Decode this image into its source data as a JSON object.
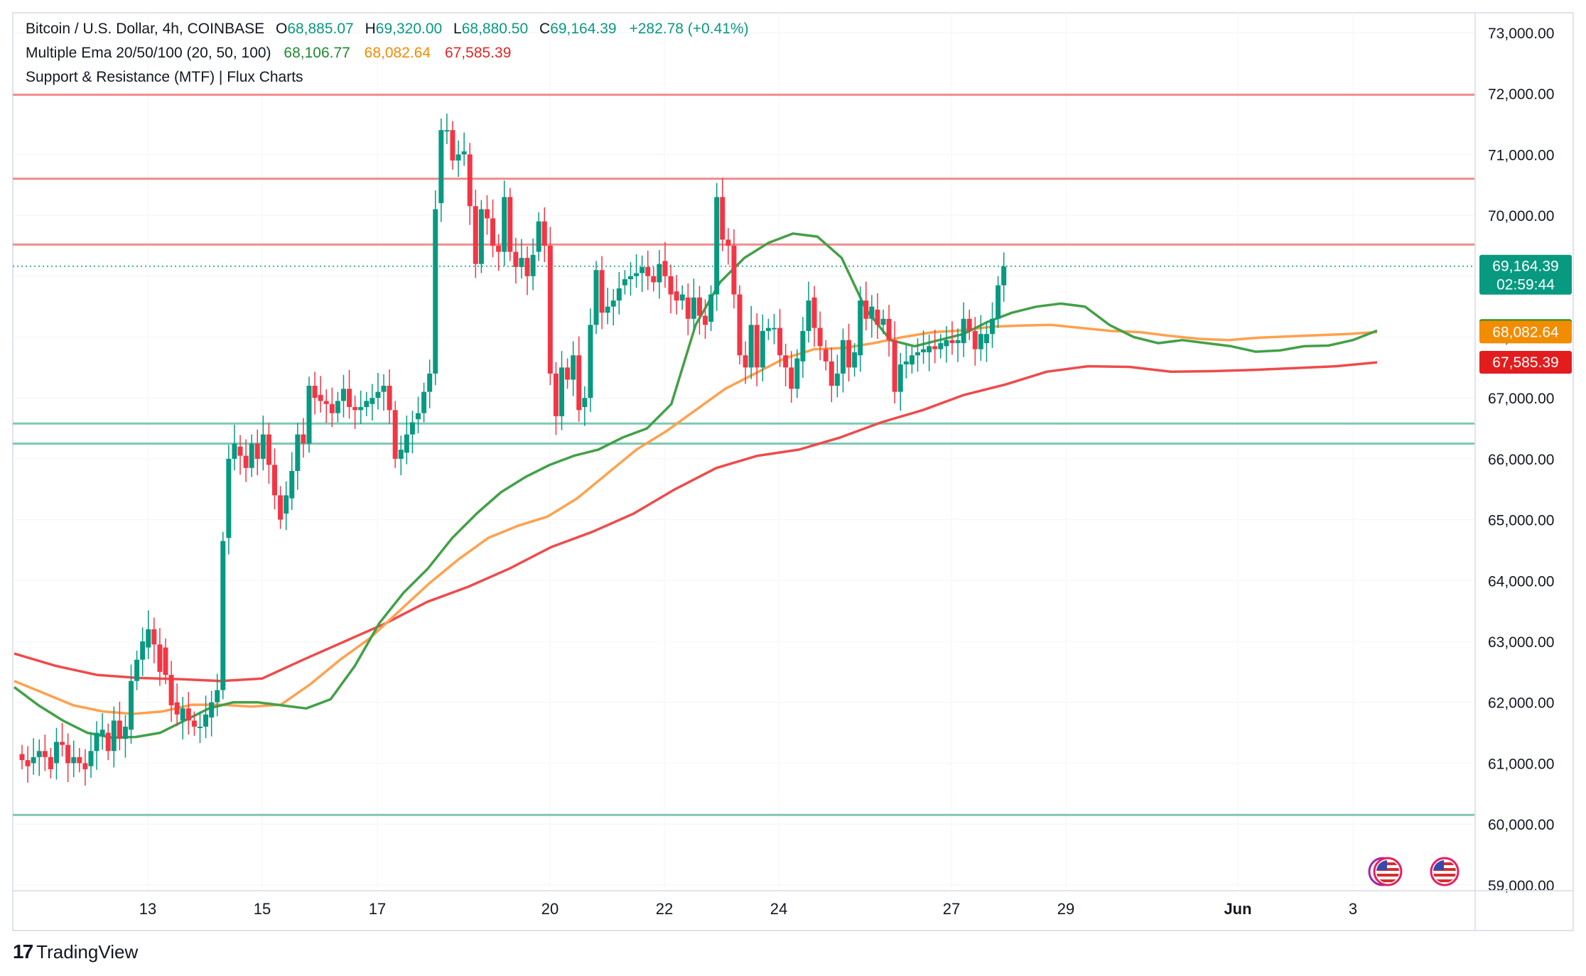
{
  "legend": {
    "symbol": "Bitcoin / U.S. Dollar, 4h, COINBASE",
    "o_label": "O",
    "o_value": "68,885.07",
    "h_label": "H",
    "h_value": "69,320.00",
    "l_label": "L",
    "l_value": "68,880.50",
    "c_label": "C",
    "c_value": "69,164.39",
    "change": "+282.78 (+0.41%)",
    "ema_title": "Multiple Ema 20/50/100 (20, 50, 100)",
    "ema20_value": "68,106.77",
    "ema50_value": "68,082.64",
    "ema100_value": "67,585.39",
    "sr_title": "Support & Resistance (MTF) | Flux Charts"
  },
  "brand": {
    "logo": "17",
    "name": "TradingView"
  },
  "colors": {
    "up": "#089981",
    "down": "#f23645",
    "ema20": "#43a047",
    "ema50": "#ffa14d",
    "ema100": "#ee4b4b",
    "resistance": "#f28b8b",
    "support": "#7ec8b4",
    "axis_text": "#131722"
  },
  "chart_data": {
    "type": "candlestick",
    "y_axis": {
      "min": 59000,
      "max": 73000,
      "ticks": [
        "59,000.00",
        "60,000.00",
        "61,000.00",
        "62,000.00",
        "63,000.00",
        "64,000.00",
        "65,000.00",
        "66,000.00",
        "67,000.00",
        "68,000.00",
        "69,000.00",
        "70,000.00",
        "71,000.00",
        "72,000.00",
        "73,000.00"
      ]
    },
    "x_axis": {
      "ticks": [
        "13",
        "15",
        "17",
        "20",
        "22",
        "24",
        "27",
        "29",
        "Jun",
        "3"
      ]
    },
    "price_labels": [
      {
        "text": "69,164.39",
        "sub": "02:59:44",
        "value": 69164.39,
        "color": "#089981"
      },
      {
        "text": "68,106.77",
        "value": 68106.77,
        "color": "#1e8c1e"
      },
      {
        "text": "68,082.64",
        "value": 68082.64,
        "color": "#f28c00"
      },
      {
        "text": "67,585.39",
        "value": 67585.39,
        "color": "#e31d1d"
      }
    ],
    "current_price": 69164.39,
    "resistance_levels": [
      71980,
      70600,
      69520
    ],
    "support_levels": [
      66580,
      66250,
      60150
    ],
    "ema20": [
      62250,
      61950,
      61700,
      61500,
      61420,
      61430,
      61500,
      61700,
      61900,
      62000,
      62000,
      61950,
      61900,
      62050,
      62600,
      63300,
      63800,
      64200,
      64700,
      65100,
      65450,
      65700,
      65900,
      66050,
      66150,
      66350,
      66500,
      66900,
      68200,
      68900,
      69300,
      69550,
      69700,
      69650,
      69300,
      68450,
      67950,
      67850,
      67950,
      68050,
      68250,
      68400,
      68500,
      68550,
      68500,
      68200,
      68000,
      67900,
      67950,
      67900,
      67850,
      67760,
      67780,
      67850,
      67860,
      67950,
      68106
    ],
    "ema50": [
      62350,
      62150,
      61950,
      61850,
      61810,
      61850,
      61960,
      61960,
      61930,
      61960,
      62300,
      62700,
      63050,
      63500,
      63950,
      64350,
      64700,
      64900,
      65050,
      65350,
      65750,
      66150,
      66450,
      66800,
      67150,
      67400,
      67650,
      67800,
      67820,
      67900,
      68000,
      68080,
      68110,
      68170,
      68190,
      68200,
      68150,
      68100,
      68080,
      68020,
      67970,
      67950,
      67990,
      68010,
      68030,
      68050,
      68082
    ],
    "ema100": [
      62800,
      62600,
      62450,
      62400,
      62380,
      62350,
      62390,
      62700,
      63000,
      63300,
      63650,
      63900,
      64200,
      64550,
      64800,
      65100,
      65500,
      65850,
      66050,
      66150,
      66350,
      66600,
      66800,
      67050,
      67220,
      67430,
      67520,
      67510,
      67430,
      67440,
      67460,
      67490,
      67520,
      67585
    ],
    "candles": [
      [
        61150,
        61050
      ],
      [
        61050,
        60950
      ],
      [
        61000,
        61100
      ],
      [
        61100,
        61200
      ],
      [
        61200,
        61100
      ],
      [
        61100,
        60900
      ],
      [
        61000,
        61350
      ],
      [
        61350,
        61300
      ],
      [
        61300,
        61000
      ],
      [
        61000,
        61100
      ],
      [
        61100,
        61000
      ],
      [
        61000,
        60900
      ],
      [
        60950,
        61200
      ],
      [
        61200,
        61500
      ],
      [
        61450,
        61550
      ],
      [
        61500,
        61200
      ],
      [
        61200,
        61700
      ],
      [
        61700,
        61400
      ],
      [
        61400,
        61600
      ],
      [
        61550,
        62350
      ],
      [
        62350,
        62700
      ],
      [
        62700,
        63000
      ],
      [
        62900,
        63200
      ],
      [
        63200,
        62950
      ],
      [
        62950,
        62500
      ],
      [
        62900,
        62450
      ],
      [
        62450,
        61950
      ],
      [
        62000,
        61800
      ],
      [
        61700,
        61900
      ],
      [
        61900,
        61700
      ],
      [
        61700,
        61600
      ],
      [
        61600,
        61600
      ],
      [
        61600,
        61800
      ],
      [
        61750,
        62000
      ],
      [
        62000,
        62200
      ],
      [
        62200,
        64650
      ],
      [
        64700,
        66000
      ],
      [
        66000,
        66250
      ],
      [
        66200,
        66050
      ],
      [
        66050,
        65850
      ],
      [
        65850,
        66250
      ],
      [
        66250,
        66000
      ],
      [
        66000,
        66400
      ],
      [
        66400,
        65900
      ],
      [
        65900,
        65400
      ],
      [
        65400,
        65000
      ],
      [
        65100,
        65400
      ],
      [
        65350,
        65800
      ],
      [
        65800,
        66400
      ],
      [
        66400,
        66250
      ],
      [
        66250,
        67200
      ],
      [
        67200,
        67000
      ],
      [
        67050,
        66950
      ],
      [
        66950,
        66900
      ],
      [
        66900,
        66750
      ],
      [
        66750,
        66950
      ],
      [
        66950,
        67150
      ],
      [
        67150,
        66850
      ],
      [
        66850,
        66800
      ],
      [
        66800,
        66850
      ],
      [
        66850,
        66950
      ],
      [
        66900,
        67000
      ],
      [
        67000,
        67100
      ],
      [
        67100,
        67200
      ],
      [
        67200,
        66800
      ],
      [
        66800,
        66000
      ],
      [
        66000,
        66150
      ],
      [
        66100,
        66400
      ],
      [
        66400,
        66600
      ],
      [
        66650,
        66750
      ],
      [
        66750,
        67100
      ],
      [
        67100,
        67400
      ],
      [
        67400,
        70100
      ],
      [
        70200,
        71400
      ],
      [
        71400,
        71400
      ],
      [
        71400,
        70900
      ],
      [
        70900,
        71000
      ],
      [
        71000,
        71050
      ],
      [
        71000,
        70150
      ],
      [
        70150,
        69200
      ],
      [
        69200,
        70100
      ],
      [
        70100,
        69950
      ],
      [
        69950,
        69500
      ],
      [
        69500,
        69400
      ],
      [
        69400,
        70300
      ],
      [
        70300,
        69400
      ],
      [
        69400,
        69150
      ],
      [
        69150,
        69300
      ],
      [
        69300,
        69000
      ],
      [
        69000,
        69350
      ],
      [
        69400,
        69900
      ],
      [
        69900,
        69500
      ],
      [
        69500,
        67400
      ],
      [
        67400,
        66700
      ],
      [
        66700,
        67500
      ],
      [
        67500,
        67300
      ],
      [
        67300,
        67700
      ],
      [
        67700,
        66800
      ],
      [
        66850,
        67000
      ],
      [
        67000,
        68200
      ],
      [
        68200,
        69100
      ],
      [
        69100,
        68400
      ],
      [
        68400,
        68500
      ],
      [
        68500,
        68600
      ],
      [
        68600,
        68800
      ],
      [
        68850,
        68950
      ],
      [
        68950,
        69000
      ],
      [
        69000,
        69050
      ],
      [
        69050,
        69150
      ],
      [
        69150,
        69000
      ],
      [
        69000,
        68900
      ],
      [
        68900,
        69200
      ],
      [
        69250,
        69000
      ],
      [
        69000,
        68700
      ],
      [
        68750,
        68600
      ],
      [
        68600,
        68700
      ],
      [
        68650,
        68300
      ],
      [
        68300,
        68650
      ],
      [
        68650,
        68350
      ],
      [
        68350,
        68200
      ],
      [
        68250,
        68700
      ],
      [
        68700,
        70300
      ],
      [
        70300,
        69600
      ],
      [
        69600,
        69500
      ],
      [
        69500,
        68700
      ],
      [
        68700,
        67700
      ],
      [
        67700,
        67500
      ],
      [
        67500,
        68200
      ],
      [
        68200,
        67500
      ],
      [
        67500,
        68100
      ],
      [
        68100,
        68150
      ],
      [
        68150,
        68150
      ],
      [
        68150,
        67700
      ],
      [
        67700,
        67500
      ],
      [
        67500,
        67150
      ],
      [
        67150,
        67650
      ],
      [
        67600,
        68100
      ],
      [
        68100,
        68600
      ],
      [
        68650,
        68150
      ],
      [
        68150,
        67850
      ],
      [
        67800,
        67600
      ],
      [
        67600,
        67200
      ],
      [
        67200,
        67400
      ],
      [
        67400,
        67950
      ],
      [
        67950,
        67500
      ],
      [
        67500,
        67750
      ],
      [
        67700,
        68600
      ],
      [
        68600,
        68300
      ],
      [
        68300,
        68500
      ],
      [
        68450,
        68200
      ],
      [
        68200,
        68300
      ],
      [
        68300,
        67950
      ],
      [
        67950,
        67100
      ],
      [
        67100,
        67550
      ],
      [
        67550,
        67600
      ],
      [
        67550,
        67700
      ],
      [
        67700,
        67750
      ],
      [
        67750,
        67800
      ],
      [
        67750,
        67850
      ],
      [
        67850,
        67800
      ],
      [
        67800,
        67900
      ],
      [
        67850,
        67950
      ],
      [
        67950,
        67900
      ],
      [
        67900,
        67950
      ],
      [
        67900,
        68300
      ],
      [
        68300,
        68100
      ],
      [
        68100,
        67800
      ],
      [
        67800,
        68050
      ],
      [
        67900,
        68050
      ],
      [
        68050,
        68300
      ],
      [
        68300,
        68850
      ],
      [
        68850,
        69160
      ]
    ]
  }
}
